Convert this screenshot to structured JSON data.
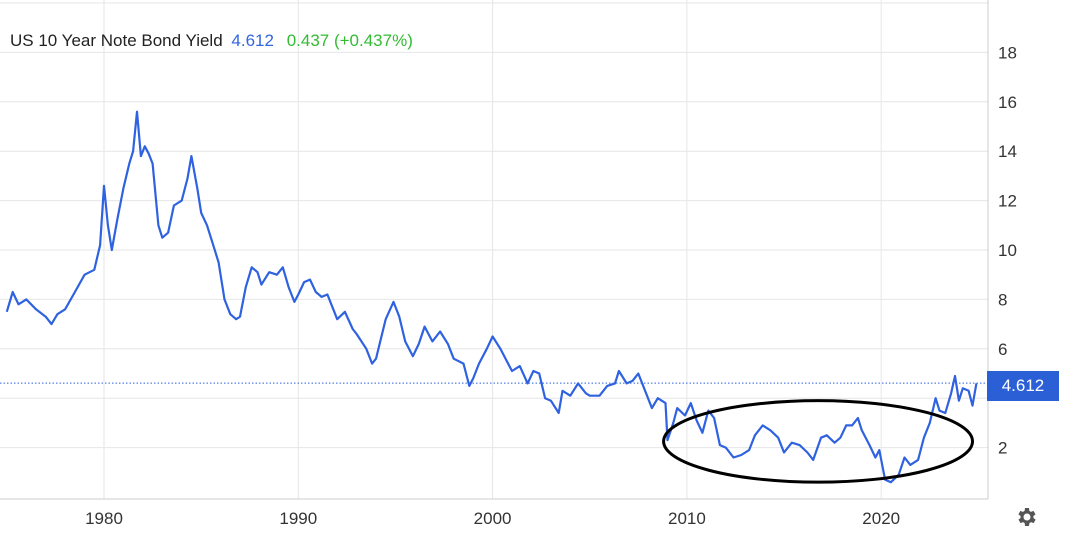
{
  "header": {
    "name": "US 10 Year Note Bond Yield",
    "price": "4.612",
    "change": "0.437 (+0.437%)"
  },
  "last_price_badge": "4.612",
  "colors": {
    "line": "#2f62e0",
    "badge": "#2a5fd6",
    "change_positive": "#33bb33",
    "grid": "#e6e6e6",
    "annotation": "#000000"
  },
  "settings_icon": "gear-icon",
  "chart_data": {
    "type": "line",
    "title": "US 10 Year Note Bond Yield",
    "xlim": [
      1975.0,
      2025.0
    ],
    "ylim": [
      0,
      20
    ],
    "x_ticks": [
      1980,
      1990,
      2000,
      2010,
      2020
    ],
    "x_tick_labels": [
      "1980",
      "1990",
      "2000",
      "2010",
      "2020"
    ],
    "y_ticks": [
      2,
      4,
      6,
      8,
      10,
      12,
      14,
      16,
      18
    ],
    "y_tick_labels": [
      "2",
      "",
      "6",
      "8",
      "10",
      "12",
      "14",
      "16",
      "18"
    ],
    "grid": true,
    "last_value": 4.612,
    "annotation": {
      "type": "ellipse",
      "x_range": [
        2008.8,
        2024.7
      ],
      "y_range": [
        0.6,
        3.9
      ]
    },
    "series": [
      {
        "values": [
          [
            1975.0,
            7.5
          ],
          [
            1975.3,
            8.3
          ],
          [
            1975.6,
            7.8
          ],
          [
            1976.0,
            8.0
          ],
          [
            1976.5,
            7.6
          ],
          [
            1977.0,
            7.3
          ],
          [
            1977.3,
            7.0
          ],
          [
            1977.6,
            7.4
          ],
          [
            1978.0,
            7.6
          ],
          [
            1978.5,
            8.3
          ],
          [
            1979.0,
            9.0
          ],
          [
            1979.5,
            9.2
          ],
          [
            1979.8,
            10.2
          ],
          [
            1980.0,
            12.6
          ],
          [
            1980.2,
            11.0
          ],
          [
            1980.4,
            10.0
          ],
          [
            1980.7,
            11.3
          ],
          [
            1981.0,
            12.5
          ],
          [
            1981.3,
            13.5
          ],
          [
            1981.5,
            14.0
          ],
          [
            1981.7,
            15.6
          ],
          [
            1981.9,
            13.8
          ],
          [
            1982.1,
            14.2
          ],
          [
            1982.3,
            13.9
          ],
          [
            1982.5,
            13.5
          ],
          [
            1982.8,
            11.0
          ],
          [
            1983.0,
            10.5
          ],
          [
            1983.3,
            10.7
          ],
          [
            1983.6,
            11.8
          ],
          [
            1984.0,
            12.0
          ],
          [
            1984.3,
            12.9
          ],
          [
            1984.5,
            13.8
          ],
          [
            1984.8,
            12.5
          ],
          [
            1985.0,
            11.5
          ],
          [
            1985.3,
            11.0
          ],
          [
            1985.5,
            10.5
          ],
          [
            1985.9,
            9.5
          ],
          [
            1986.2,
            8.0
          ],
          [
            1986.5,
            7.4
          ],
          [
            1986.8,
            7.2
          ],
          [
            1987.0,
            7.3
          ],
          [
            1987.3,
            8.5
          ],
          [
            1987.6,
            9.3
          ],
          [
            1987.9,
            9.1
          ],
          [
            1988.1,
            8.6
          ],
          [
            1988.5,
            9.1
          ],
          [
            1988.9,
            9.0
          ],
          [
            1989.2,
            9.3
          ],
          [
            1989.5,
            8.5
          ],
          [
            1989.8,
            7.9
          ],
          [
            1990.0,
            8.2
          ],
          [
            1990.3,
            8.7
          ],
          [
            1990.6,
            8.8
          ],
          [
            1990.9,
            8.3
          ],
          [
            1991.2,
            8.1
          ],
          [
            1991.5,
            8.2
          ],
          [
            1991.8,
            7.6
          ],
          [
            1992.0,
            7.2
          ],
          [
            1992.4,
            7.5
          ],
          [
            1992.8,
            6.8
          ],
          [
            1993.0,
            6.6
          ],
          [
            1993.5,
            6.0
          ],
          [
            1993.8,
            5.4
          ],
          [
            1994.0,
            5.6
          ],
          [
            1994.5,
            7.2
          ],
          [
            1994.9,
            7.9
          ],
          [
            1995.2,
            7.3
          ],
          [
            1995.5,
            6.3
          ],
          [
            1995.9,
            5.7
          ],
          [
            1996.2,
            6.2
          ],
          [
            1996.5,
            6.9
          ],
          [
            1996.9,
            6.3
          ],
          [
            1997.3,
            6.7
          ],
          [
            1997.7,
            6.2
          ],
          [
            1998.0,
            5.6
          ],
          [
            1998.5,
            5.4
          ],
          [
            1998.8,
            4.5
          ],
          [
            1999.0,
            4.8
          ],
          [
            1999.3,
            5.4
          ],
          [
            1999.7,
            6.0
          ],
          [
            2000.0,
            6.5
          ],
          [
            2000.4,
            6.0
          ],
          [
            2000.8,
            5.4
          ],
          [
            2001.0,
            5.1
          ],
          [
            2001.4,
            5.3
          ],
          [
            2001.8,
            4.6
          ],
          [
            2002.1,
            5.1
          ],
          [
            2002.4,
            5.0
          ],
          [
            2002.7,
            4.0
          ],
          [
            2003.0,
            3.9
          ],
          [
            2003.4,
            3.4
          ],
          [
            2003.6,
            4.3
          ],
          [
            2004.0,
            4.1
          ],
          [
            2004.4,
            4.6
          ],
          [
            2004.8,
            4.2
          ],
          [
            2005.0,
            4.1
          ],
          [
            2005.5,
            4.1
          ],
          [
            2005.9,
            4.5
          ],
          [
            2006.3,
            4.6
          ],
          [
            2006.5,
            5.1
          ],
          [
            2006.9,
            4.6
          ],
          [
            2007.2,
            4.7
          ],
          [
            2007.5,
            5.0
          ],
          [
            2007.9,
            4.2
          ],
          [
            2008.2,
            3.6
          ],
          [
            2008.5,
            4.0
          ],
          [
            2008.9,
            3.8
          ],
          [
            2009.0,
            2.3
          ],
          [
            2009.3,
            3.0
          ],
          [
            2009.5,
            3.6
          ],
          [
            2009.9,
            3.3
          ],
          [
            2010.2,
            3.8
          ],
          [
            2010.5,
            3.1
          ],
          [
            2010.8,
            2.6
          ],
          [
            2011.1,
            3.5
          ],
          [
            2011.4,
            3.2
          ],
          [
            2011.7,
            2.1
          ],
          [
            2012.0,
            2.0
          ],
          [
            2012.4,
            1.6
          ],
          [
            2012.8,
            1.7
          ],
          [
            2013.2,
            1.9
          ],
          [
            2013.5,
            2.5
          ],
          [
            2013.9,
            2.9
          ],
          [
            2014.3,
            2.7
          ],
          [
            2014.7,
            2.4
          ],
          [
            2015.0,
            1.8
          ],
          [
            2015.4,
            2.2
          ],
          [
            2015.8,
            2.1
          ],
          [
            2016.2,
            1.8
          ],
          [
            2016.5,
            1.5
          ],
          [
            2016.9,
            2.4
          ],
          [
            2017.2,
            2.5
          ],
          [
            2017.6,
            2.2
          ],
          [
            2017.9,
            2.4
          ],
          [
            2018.2,
            2.9
          ],
          [
            2018.5,
            2.9
          ],
          [
            2018.8,
            3.2
          ],
          [
            2019.0,
            2.7
          ],
          [
            2019.4,
            2.1
          ],
          [
            2019.7,
            1.6
          ],
          [
            2019.9,
            1.9
          ],
          [
            2020.2,
            0.7
          ],
          [
            2020.5,
            0.6
          ],
          [
            2020.9,
            0.9
          ],
          [
            2021.2,
            1.6
          ],
          [
            2021.5,
            1.3
          ],
          [
            2021.9,
            1.5
          ],
          [
            2022.2,
            2.4
          ],
          [
            2022.5,
            3.0
          ],
          [
            2022.8,
            4.0
          ],
          [
            2023.0,
            3.5
          ],
          [
            2023.3,
            3.4
          ],
          [
            2023.6,
            4.2
          ],
          [
            2023.8,
            4.9
          ],
          [
            2024.0,
            3.9
          ],
          [
            2024.2,
            4.4
          ],
          [
            2024.5,
            4.3
          ],
          [
            2024.7,
            3.7
          ],
          [
            2024.9,
            4.6
          ]
        ]
      }
    ]
  }
}
